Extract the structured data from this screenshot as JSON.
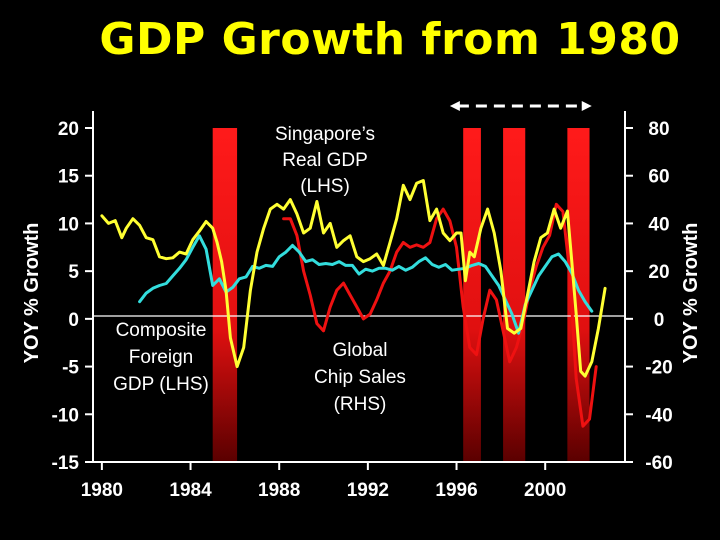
{
  "colors": {
    "background": "#000000",
    "title": "#ffff00",
    "singapore": "#ffff33",
    "foreign": "#33dddd",
    "chips": "#ee1111",
    "band": "#ff1a1a"
  },
  "chart_data": {
    "type": "line",
    "title": "GDP Growth from 1980",
    "xlabel": "",
    "ylabel_left": "YOY % Growth",
    "ylabel_right": "YOY % Growth",
    "xlim": [
      1979.6,
      2003.6
    ],
    "ylim_left": [
      -15,
      20
    ],
    "ylim_right": [
      -60,
      80
    ],
    "x_ticks": [
      1980,
      1984,
      1988,
      1992,
      1996,
      2000
    ],
    "y_ticks_left": [
      20,
      15,
      10,
      5,
      0,
      -5,
      -10,
      -15
    ],
    "y_ticks_right": [
      80,
      60,
      40,
      20,
      0,
      -20,
      -40,
      -60
    ],
    "recession_bands": [
      {
        "start": 1985.0,
        "end": 1986.1
      },
      {
        "start": 1996.3,
        "end": 1997.1
      },
      {
        "start": 1998.1,
        "end": 1999.1
      },
      {
        "start": 2001.0,
        "end": 2002.0
      }
    ],
    "arrow_range": [
      1995.7,
      2002.1
    ],
    "series": [
      {
        "name": "Singapore's Real GDP (LHS)",
        "axis": "left",
        "color": "#ffff33",
        "x": [
          1980,
          1980.3,
          1980.6,
          1980.9,
          1981.1,
          1981.4,
          1981.7,
          1982,
          1982.3,
          1982.6,
          1982.9,
          1983.2,
          1983.5,
          1983.8,
          1984.1,
          1984.4,
          1984.7,
          1985,
          1985.2,
          1985.4,
          1985.6,
          1985.8,
          1986.1,
          1986.4,
          1986.7,
          1987,
          1987.3,
          1987.6,
          1987.9,
          1988.2,
          1988.5,
          1988.8,
          1989.1,
          1989.4,
          1989.7,
          1990,
          1990.3,
          1990.6,
          1990.9,
          1991.2,
          1991.5,
          1991.8,
          1992.1,
          1992.4,
          1992.7,
          1993,
          1993.3,
          1993.6,
          1993.9,
          1994.2,
          1994.5,
          1994.8,
          1995.1,
          1995.4,
          1995.7,
          1996,
          1996.2,
          1996.4,
          1996.6,
          1996.8,
          1997.1,
          1997.4,
          1997.7,
          1998,
          1998.3,
          1998.6,
          1998.9,
          1999.2,
          1999.5,
          1999.8,
          2000.1,
          2000.4,
          2000.7,
          2001,
          2001.2,
          2001.4,
          2001.6,
          2001.8,
          2002.1,
          2002.4,
          2002.7
        ],
        "y": [
          10.8,
          10,
          10.3,
          8.5,
          9.5,
          10.5,
          9.8,
          8.5,
          8.3,
          6.5,
          6.3,
          6.4,
          7,
          6.8,
          8.3,
          9.2,
          10.2,
          9.5,
          8,
          6,
          3,
          -2,
          -5,
          -3,
          3,
          7,
          9.5,
          11.5,
          12,
          11.5,
          12.5,
          11,
          9,
          9.5,
          12.3,
          9,
          10,
          7.5,
          8.2,
          8.7,
          6.5,
          6,
          6.3,
          6.8,
          5.6,
          8,
          10.5,
          14,
          12.5,
          14.2,
          14.5,
          10.3,
          11.5,
          9,
          8.2,
          9,
          9,
          4,
          7,
          6.5,
          9.5,
          11.5,
          9,
          5,
          -1,
          -1.5,
          -1,
          2.5,
          6,
          8.5,
          9,
          11.5,
          9.5,
          11.3,
          6,
          0.5,
          -5.5,
          -6,
          -4.5,
          -1,
          3.2
        ]
      },
      {
        "name": "Composite Foreign GDP (LHS)",
        "axis": "left",
        "color": "#33dddd",
        "x": [
          1981.7,
          1982,
          1982.3,
          1982.6,
          1982.9,
          1983.2,
          1983.5,
          1983.8,
          1984.1,
          1984.4,
          1984.7,
          1985,
          1985.3,
          1985.6,
          1985.9,
          1986.2,
          1986.5,
          1986.8,
          1987.1,
          1987.4,
          1987.7,
          1988,
          1988.3,
          1988.6,
          1988.9,
          1989.2,
          1989.5,
          1989.8,
          1990.1,
          1990.4,
          1990.7,
          1991,
          1991.3,
          1991.6,
          1991.9,
          1992.2,
          1992.5,
          1992.8,
          1993.1,
          1993.4,
          1993.7,
          1994,
          1994.3,
          1994.6,
          1994.9,
          1995.2,
          1995.5,
          1995.8,
          1996.1,
          1996.4,
          1996.7,
          1997,
          1997.3,
          1997.6,
          1997.9,
          1998.2,
          1998.5,
          1998.8,
          1999.1,
          1999.4,
          1999.7,
          2000,
          2000.3,
          2000.6,
          2000.9,
          2001.2,
          2001.5,
          2001.8,
          2002.1
        ],
        "y": [
          1.8,
          2.7,
          3.2,
          3.5,
          3.7,
          4.5,
          5.3,
          6.2,
          7.5,
          8.7,
          7.3,
          3.5,
          4.2,
          2.8,
          3.3,
          4.2,
          4.4,
          5.5,
          5.3,
          5.6,
          5.5,
          6.5,
          7,
          7.7,
          7,
          6,
          6.2,
          5.7,
          5.8,
          5.7,
          6,
          5.6,
          5.6,
          4.7,
          5.2,
          5,
          5.3,
          5.3,
          5.1,
          5.5,
          5.1,
          5.4,
          6,
          6.4,
          5.7,
          5.4,
          5.7,
          5.1,
          5.2,
          5.3,
          5.6,
          5.8,
          5.5,
          4.5,
          3.5,
          2,
          0.5,
          -1.5,
          1.5,
          3,
          4.5,
          5.5,
          6.5,
          6.8,
          6,
          4.8,
          3,
          1.8,
          0.8
        ]
      },
      {
        "name": "Global Chip Sales (RHS)",
        "axis": "right",
        "color": "#ee1111",
        "x": [
          1988.2,
          1988.5,
          1988.8,
          1989.1,
          1989.4,
          1989.7,
          1990,
          1990.3,
          1990.6,
          1990.9,
          1991.2,
          1991.5,
          1991.8,
          1992.1,
          1992.4,
          1992.7,
          1993,
          1993.3,
          1993.6,
          1993.9,
          1994.2,
          1994.5,
          1994.8,
          1995.1,
          1995.4,
          1995.7,
          1996,
          1996.3,
          1996.6,
          1996.9,
          1997.2,
          1997.5,
          1997.8,
          1998.1,
          1998.4,
          1998.7,
          1999,
          1999.3,
          1999.6,
          1999.9,
          2000.2,
          2000.5,
          2000.8,
          2001.1,
          2001.4,
          2001.7,
          2002,
          2002.3
        ],
        "y": [
          42,
          42,
          35,
          20,
          10,
          -2,
          -5,
          5,
          12,
          15,
          10,
          5,
          0,
          2,
          8,
          15,
          20,
          28,
          32,
          30,
          31,
          30,
          32,
          42,
          46,
          41,
          30,
          5,
          -12,
          -15,
          0,
          12,
          8,
          -5,
          -18,
          -12,
          -2,
          12,
          22,
          30,
          35,
          48,
          45,
          20,
          -25,
          -45,
          -42,
          -20
        ]
      }
    ],
    "annotations": {
      "singapore_lines": [
        "Singapore’s",
        "Real GDP",
        "(LHS)"
      ],
      "foreign_lines": [
        "Composite",
        "Foreign",
        "GDP (LHS)"
      ],
      "chips_lines": [
        "Global",
        "Chip Sales",
        "(RHS)"
      ]
    }
  }
}
